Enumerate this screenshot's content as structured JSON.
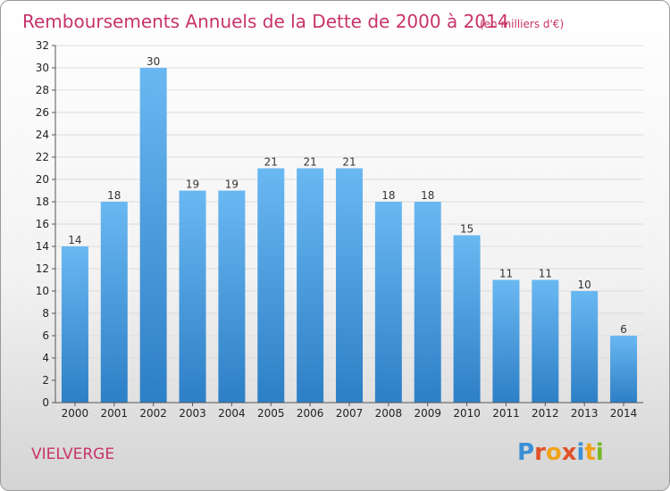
{
  "chart_data": {
    "type": "bar",
    "title": "Remboursements Annuels de la Dette de 2000 à 2014",
    "subtitle": "(en milliers d'€)",
    "categories": [
      "2000",
      "2001",
      "2002",
      "2003",
      "2004",
      "2005",
      "2006",
      "2007",
      "2008",
      "2009",
      "2010",
      "2011",
      "2012",
      "2013",
      "2014"
    ],
    "values": [
      14,
      18,
      30,
      19,
      19,
      21,
      21,
      21,
      18,
      18,
      15,
      11,
      11,
      10,
      6
    ],
    "xlabel": "",
    "ylabel": "",
    "ylim": [
      0,
      32
    ],
    "yticks": [
      0,
      2,
      4,
      6,
      8,
      10,
      12,
      14,
      16,
      18,
      20,
      22,
      24,
      26,
      28,
      30,
      32
    ],
    "grid": true
  },
  "commune": "VIELVERGE",
  "brand": {
    "name": "Proxiti",
    "letters": [
      {
        "ch": "P",
        "color": "#3a8fd6"
      },
      {
        "ch": "r",
        "color": "#e0522a"
      },
      {
        "ch": "o",
        "color": "#f0a21a"
      },
      {
        "ch": "x",
        "color": "#e0522a"
      },
      {
        "ch": "i",
        "color": "#3a8fd6"
      },
      {
        "ch": "t",
        "color": "#f0a21a"
      },
      {
        "ch": "i",
        "color": "#76b82a"
      }
    ]
  },
  "colors": {
    "bar_top": "#6ab8f2",
    "bar_bottom": "#2d7fc6",
    "accent": "#c8336a"
  }
}
